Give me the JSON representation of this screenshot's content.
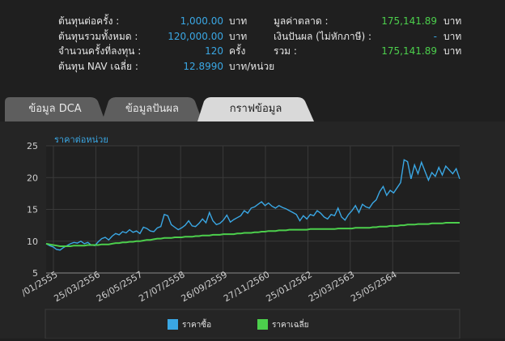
{
  "summary": {
    "left": [
      {
        "label": "ต้นทุนต่อครั้ง :",
        "value": "1,000.00",
        "unit": "บาท"
      },
      {
        "label": "ต้นทุนรวมทั้งหมด :",
        "value": "120,000.00",
        "unit": "บาท"
      },
      {
        "label": "จำนวนครั้งที่ลงทุน :",
        "value": "120",
        "unit": "ครั้ง"
      },
      {
        "label": "ต้นทุน NAV เฉลี่ย :",
        "value": "12.8990",
        "unit": "บาท/หน่วย"
      }
    ],
    "right": [
      {
        "label": "มูลค่าตลาด :",
        "value": "175,141.89",
        "unit": "บาท"
      },
      {
        "label": "เงินปันผล (ไม่หักภาษี) :",
        "value": "-",
        "unit": "บาท"
      },
      {
        "label": "รวม :",
        "value": "175,141.89",
        "unit": "บาท"
      }
    ]
  },
  "tabs": [
    {
      "label": "ข้อมูล DCA",
      "active": false
    },
    {
      "label": "ข้อมูลปันผล",
      "active": false
    },
    {
      "label": "กราฟข้อมูล",
      "active": true
    }
  ],
  "colors": {
    "buy_price": "#3aa7e4",
    "avg_price": "#4ccf4c",
    "value_blue": "#3aa7e4",
    "value_green": "#4ccf4c"
  },
  "chart_data": {
    "type": "line",
    "title": "ราคาต่อหน่วย",
    "ylim": [
      5,
      25
    ],
    "yticks": [
      5,
      10,
      15,
      20,
      25
    ],
    "x_tick_labels": [
      "/01/2555",
      "25/03/2556",
      "26/05/2557",
      "27/07/2558",
      "26/09/2559",
      "27/11/2560",
      "25/01/2562",
      "25/03/2563",
      "25/05/2564"
    ],
    "grid": true,
    "legend_position": "bottom",
    "series": [
      {
        "name": "ราคาซื้อ",
        "color": "#3aa7e4",
        "values": [
          9.6,
          9.3,
          9.1,
          8.7,
          8.6,
          9.0,
          9.3,
          9.6,
          9.8,
          9.7,
          10.0,
          9.6,
          9.8,
          9.4,
          9.3,
          9.9,
          10.4,
          10.6,
          10.2,
          10.8,
          11.2,
          11.0,
          11.5,
          11.3,
          11.8,
          11.4,
          11.6,
          11.2,
          12.2,
          12.0,
          11.6,
          11.5,
          12.1,
          12.3,
          14.2,
          14.0,
          12.6,
          12.2,
          11.8,
          12.1,
          12.5,
          13.2,
          12.4,
          12.3,
          12.8,
          13.5,
          12.9,
          14.5,
          13.2,
          12.6,
          12.8,
          13.3,
          14.1,
          13.0,
          13.4,
          13.7,
          14.0,
          14.8,
          14.4,
          15.2,
          15.4,
          15.8,
          16.2,
          15.6,
          16.0,
          15.5,
          15.2,
          15.6,
          15.3,
          15.1,
          14.8,
          14.5,
          14.2,
          13.2,
          14.0,
          13.5,
          14.2,
          14.0,
          14.8,
          14.4,
          13.8,
          13.5,
          14.2,
          14.0,
          15.2,
          13.8,
          13.3,
          14.2,
          14.8,
          15.6,
          14.5,
          15.8,
          15.4,
          15.2,
          16.0,
          16.5,
          17.8,
          18.6,
          17.2,
          18.0,
          17.6,
          18.4,
          19.2,
          22.8,
          22.5,
          19.8,
          22.0,
          20.6,
          22.4,
          21.0,
          19.6,
          20.8,
          20.2,
          21.6,
          20.4,
          21.8,
          21.2,
          20.6,
          21.4,
          19.8
        ]
      },
      {
        "name": "ราคาเฉลี่ย",
        "color": "#4ccf4c",
        "values": [
          9.6,
          9.5,
          9.4,
          9.3,
          9.2,
          9.2,
          9.2,
          9.2,
          9.3,
          9.3,
          9.3,
          9.3,
          9.4,
          9.4,
          9.4,
          9.4,
          9.5,
          9.5,
          9.5,
          9.6,
          9.7,
          9.7,
          9.8,
          9.8,
          9.9,
          9.9,
          10.0,
          10.0,
          10.1,
          10.2,
          10.2,
          10.3,
          10.4,
          10.4,
          10.5,
          10.5,
          10.5,
          10.6,
          10.6,
          10.6,
          10.7,
          10.7,
          10.7,
          10.8,
          10.8,
          10.9,
          10.9,
          10.9,
          11.0,
          11.0,
          11.0,
          11.1,
          11.1,
          11.1,
          11.1,
          11.2,
          11.2,
          11.3,
          11.3,
          11.3,
          11.4,
          11.4,
          11.5,
          11.5,
          11.6,
          11.6,
          11.6,
          11.7,
          11.7,
          11.7,
          11.8,
          11.8,
          11.8,
          11.8,
          11.8,
          11.8,
          11.9,
          11.9,
          11.9,
          11.9,
          11.9,
          11.9,
          11.9,
          11.9,
          12.0,
          12.0,
          12.0,
          12.0,
          12.0,
          12.1,
          12.1,
          12.1,
          12.1,
          12.1,
          12.2,
          12.2,
          12.3,
          12.3,
          12.3,
          12.4,
          12.4,
          12.4,
          12.5,
          12.5,
          12.6,
          12.6,
          12.6,
          12.7,
          12.7,
          12.7,
          12.7,
          12.8,
          12.8,
          12.8,
          12.8,
          12.9,
          12.9,
          12.9,
          12.9,
          12.9
        ]
      }
    ]
  }
}
